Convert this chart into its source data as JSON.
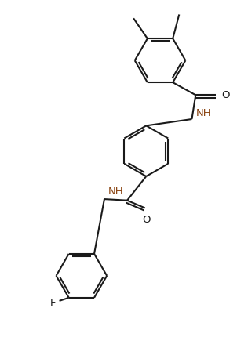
{
  "background": "#ffffff",
  "bond_color": "#1a1a1a",
  "text_color": "#1a1a1a",
  "nh_color": "#8B4513",
  "figsize": [
    3.16,
    4.31
  ],
  "dpi": 100,
  "R": 0.4,
  "lw": 1.5,
  "dbo": 0.04,
  "fs": 9.5,
  "shrink": 0.13,
  "xlim": [
    -1.4,
    1.5
  ],
  "ylim": [
    -2.3,
    3.0
  ]
}
